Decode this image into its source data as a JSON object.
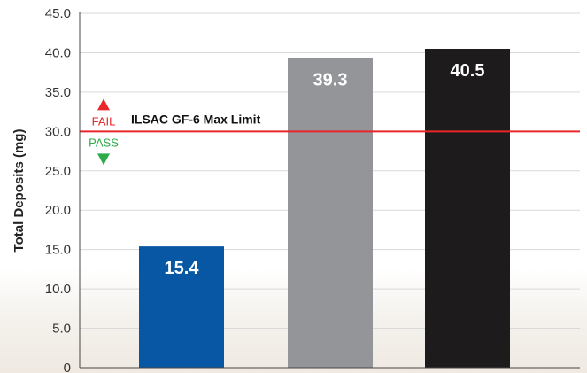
{
  "chart_data": {
    "type": "bar",
    "title": "",
    "xlabel": "",
    "ylabel": "Total Deposits (mg)",
    "ylim": [
      0,
      45
    ],
    "yticks": [
      "0",
      "5.0",
      "10.0",
      "15.0",
      "20.0",
      "25.0",
      "30.0",
      "35.0",
      "40.0",
      "45.0"
    ],
    "grid": true,
    "bars": [
      {
        "value": 15.4,
        "label": "15.4",
        "color": "#0757a4"
      },
      {
        "value": 39.3,
        "label": "39.3",
        "color": "#949599"
      },
      {
        "value": 40.5,
        "label": "40.5",
        "color": "#1d1b1c"
      }
    ],
    "reference_line": {
      "value": 30.0,
      "label": "ILSAC GF-6 Max Limit",
      "color": "#e8262b",
      "above_label": "FAIL",
      "above_color": "#e8262b",
      "below_label": "PASS",
      "below_color": "#2eaa4a"
    }
  }
}
